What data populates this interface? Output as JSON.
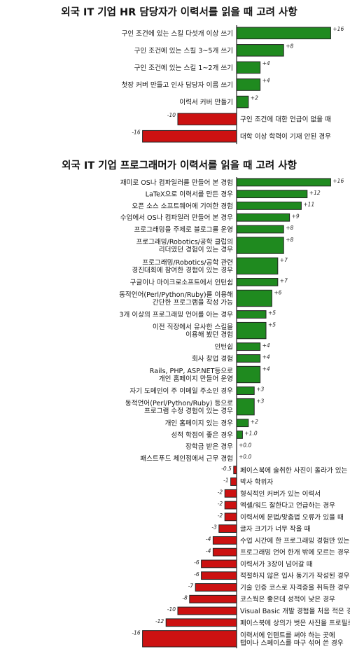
{
  "colors": {
    "positive": "#1f8a1f",
    "negative": "#cc1111",
    "axis": "#111111"
  },
  "chart_data": [
    {
      "type": "bar",
      "orientation": "horizontal",
      "title": "외국 IT 기업 HR 담당자가 이력서를 읽을 때 고려 사항",
      "xlim": [
        -16,
        16
      ],
      "grid": false,
      "categories": [
        "구인 조건에 있는 스킬 다섯개 이상 쓰기",
        "구인 조건에 있는 스킬 3~5개 쓰기",
        "구인 조건에 있는 스킬 1~2개 쓰기",
        "첫장 커버 만들고 인사 담당자 이름 쓰기",
        "이력서 커버 만들기",
        "구인 조건에 대한 언급이 없을 때",
        "대학 이상 학력이 기재 안된 경우"
      ],
      "values": [
        16,
        8,
        4,
        4,
        2,
        -10,
        -16
      ],
      "value_labels": [
        "+16",
        "+8",
        "+4",
        "+4",
        "+2",
        "-10",
        "-16"
      ]
    },
    {
      "type": "bar",
      "orientation": "horizontal",
      "title": "외국 IT 기업 프로그래머가 이력서를 읽을 때 고려 사항",
      "xlim": [
        -16,
        16
      ],
      "grid": false,
      "categories": [
        "재미로 OS나 컴파일러를 만들어 본 경험",
        "LaTeX으로 이력서를 만든 경우",
        "오픈 소스 소프트웨어에 기여한 경험",
        "수업에서 OS나 컴파일러 만들어 본 경우",
        "프로그래밍을 주제로 블로그를 운영",
        "프로그래밍/Robotics/공학 클럽의\n리더였던 경험이 있는 경우",
        "프로그래밍/Robotics/공학 관련\n경진대회에 참여한 경험이 있는 경우",
        "구글이나 마이크로소프트에서 인턴쉽",
        "동적언어(Perl/Python/Ruby)를 이용해\n간단한 프로그램을 작성 가능",
        "3개 이상의 프로그래밍 언어를 아는 경우",
        "이전 직장에서 유사한 스킬을\n이용해 봤던 경험",
        "인턴쉽",
        "회사 창업 경험",
        "Rails, PHP, ASP.NET등으로\n개인 홈페이지 만들어 운영",
        "자기 도메인이 주 이메일 주소인 경우",
        "동적언어(Perl/Python/Ruby) 등으로\n프로그램 수정  경험이 있는 경우",
        "개인 홈페이지 있는 경우",
        "성적 학점이 좋은 경우",
        "장학금 받은 경우",
        "패스트푸드 체인점에서 근무 경험",
        "페이스북에 술취한 사진이 올라가 있는 경우",
        "박사 학위자",
        "형식적인 커버가 있는 이력서",
        "엑셀/워드 잘한다고 언급하는 경우",
        "이력서에 문법/맞춤법 오류가 있을 때",
        "글자 크기가 너무 작을 때",
        "수업 시간에 한 프로그래밍 경험만 있는 경우",
        "프로그래밍 언어 한개 밖에 모르는 경우",
        "이력서가 3장이 넘어갈 때",
        "적절하지 않은 입사 동기가 작성된 경우",
        "기술 인증 코스로 자격증을 취득한 경우",
        "코스웍은 좋은데 성적이 낮은 경우",
        "Visual Basic 개발 경험을 처음 적은 경우",
        "페이스북에 상의가 벗은 사진을 프로필로 쓰는 경우",
        "이력서에 인텐트를 써야 하는 곳에\n탭이나 스페이스를 마구 섞어 쓴 경우"
      ],
      "values": [
        16,
        12,
        11,
        9,
        8,
        8,
        7,
        7,
        6,
        5,
        5,
        4,
        4,
        4,
        3,
        3,
        2,
        1,
        0,
        0,
        -0.5,
        -1,
        -2,
        -2,
        -2,
        -3,
        -4,
        -4,
        -6,
        -6,
        -7,
        -8,
        -10,
        -12,
        -16
      ],
      "value_labels": [
        "+16",
        "+12",
        "+11",
        "+9",
        "+8",
        "+8",
        "+7",
        "+7",
        "+6",
        "+5",
        "+5",
        "+4",
        "+4",
        "+4",
        "+3",
        "+3",
        "+2",
        "+1.0",
        "+0.0",
        "+0.0",
        "-0.5",
        "-1",
        "-2",
        "-2",
        "-2",
        "-3",
        "-4",
        "-4",
        "-6",
        "-6",
        "-7",
        "-8",
        "-10",
        "-12",
        "-16"
      ]
    }
  ]
}
